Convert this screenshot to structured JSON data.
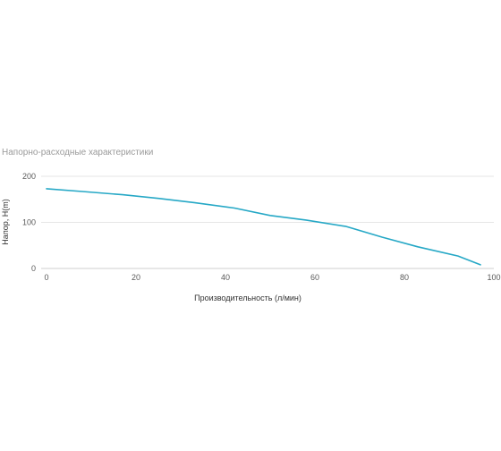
{
  "chart_data": {
    "type": "line",
    "title": "Напорно-расходные характеристики",
    "xlabel": "Производительность (л/мин)",
    "ylabel": "Напор, Н(m)",
    "xlim": [
      0,
      100
    ],
    "ylim": [
      0,
      200
    ],
    "x_ticks": [
      "0",
      "20",
      "40",
      "60",
      "80",
      "100"
    ],
    "y_ticks": [
      "0",
      "100",
      "200"
    ],
    "grid": true,
    "series_color": "#26A8C6",
    "series": [
      {
        "x": [
          0,
          8,
          17,
          25,
          33,
          42,
          50,
          58,
          67,
          75,
          83,
          92,
          97
        ],
        "values": [
          173,
          167,
          160,
          152,
          143,
          131,
          115,
          105,
          91,
          68,
          47,
          27,
          8
        ]
      }
    ]
  }
}
